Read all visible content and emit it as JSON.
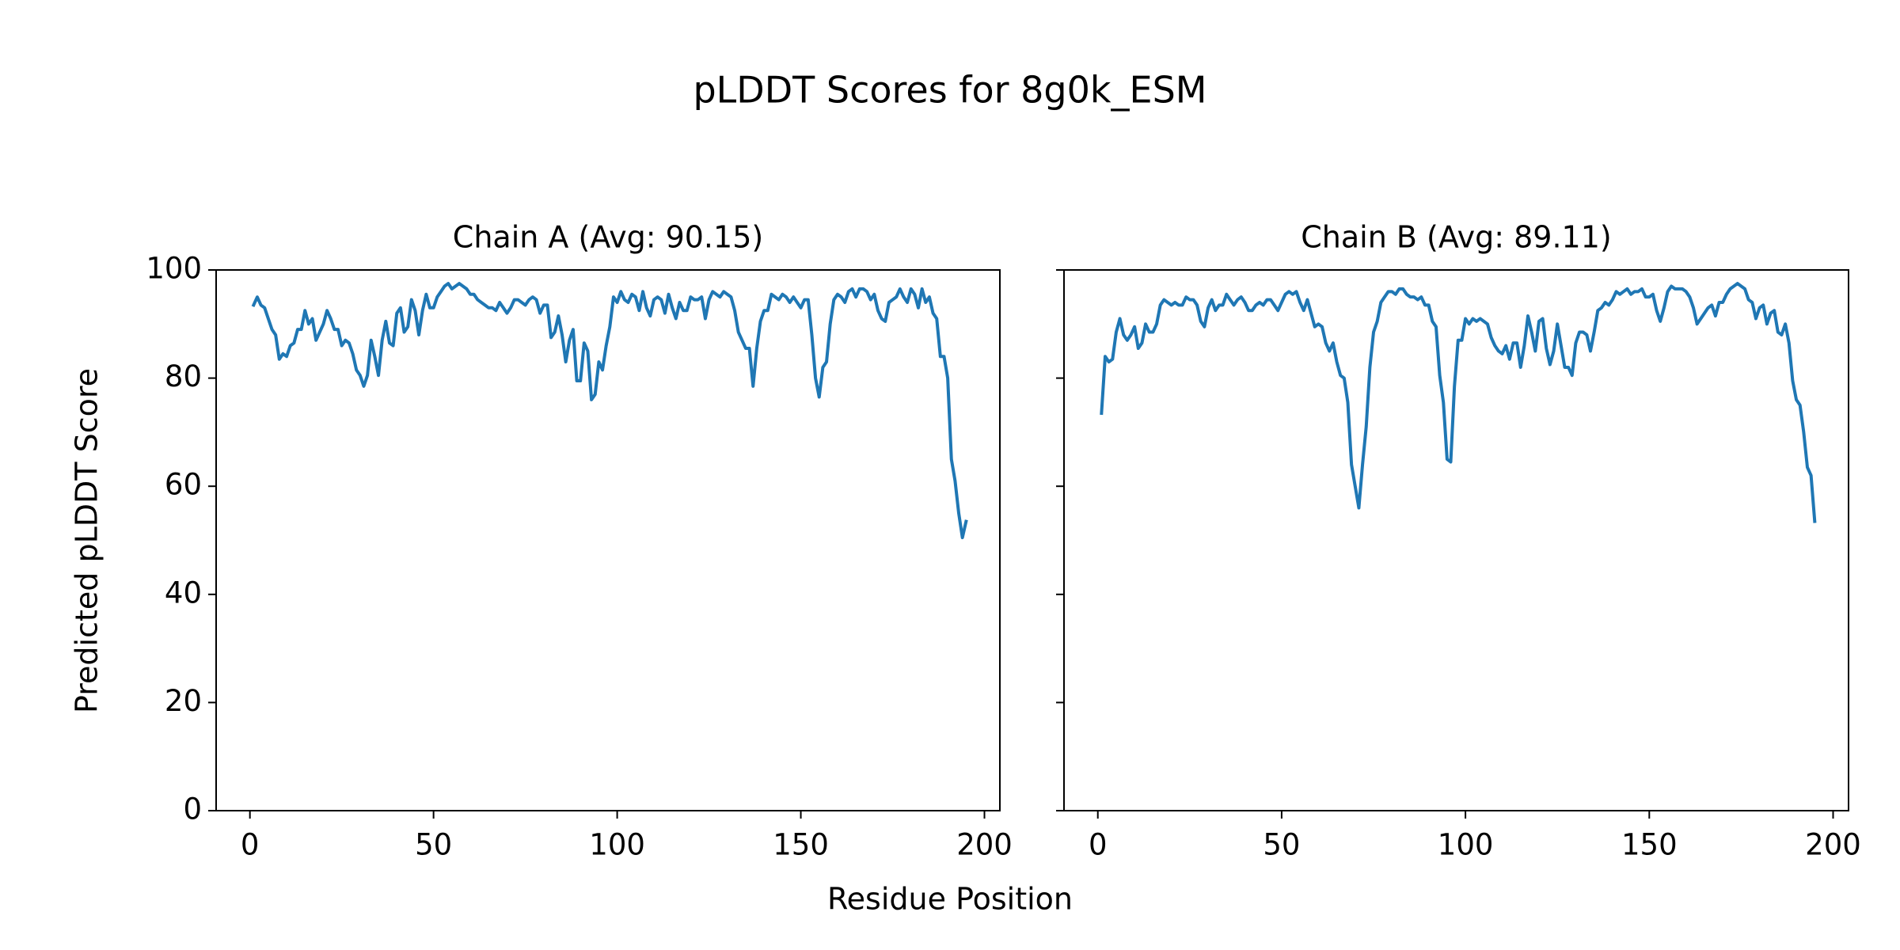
{
  "title": "pLDDT Scores for 8g0k_ESM",
  "xlabel": "Residue Position",
  "ylabel": "Predicted pLDDT Score",
  "chart_data": [
    {
      "type": "line",
      "title": "Chain A (Avg: 90.15)",
      "color": "#1f77b4",
      "xlim": [
        -9.2,
        204.2
      ],
      "xticks": [
        0,
        50,
        100,
        150,
        200
      ],
      "ylim": [
        0,
        100
      ],
      "yticks": [
        0,
        20,
        40,
        60,
        80,
        100
      ],
      "x": [
        1,
        2,
        3,
        4,
        5,
        6,
        7,
        8,
        9,
        10,
        11,
        12,
        13,
        14,
        15,
        16,
        17,
        18,
        19,
        20,
        21,
        22,
        23,
        24,
        25,
        26,
        27,
        28,
        29,
        30,
        31,
        32,
        33,
        34,
        35,
        36,
        37,
        38,
        39,
        40,
        41,
        42,
        43,
        44,
        45,
        46,
        47,
        48,
        49,
        50,
        51,
        52,
        53,
        54,
        55,
        56,
        57,
        58,
        59,
        60,
        61,
        62,
        63,
        64,
        65,
        66,
        67,
        68,
        69,
        70,
        71,
        72,
        73,
        74,
        75,
        76,
        77,
        78,
        79,
        80,
        81,
        82,
        83,
        84,
        85,
        86,
        87,
        88,
        89,
        90,
        91,
        92,
        93,
        94,
        95,
        96,
        97,
        98,
        99,
        100,
        101,
        102,
        103,
        104,
        105,
        106,
        107,
        108,
        109,
        110,
        111,
        112,
        113,
        114,
        115,
        116,
        117,
        118,
        119,
        120,
        121,
        122,
        123,
        124,
        125,
        126,
        127,
        128,
        129,
        130,
        131,
        132,
        133,
        134,
        135,
        136,
        137,
        138,
        139,
        140,
        141,
        142,
        143,
        144,
        145,
        146,
        147,
        148,
        149,
        150,
        151,
        152,
        153,
        154,
        155,
        156,
        157,
        158,
        159,
        160,
        161,
        162,
        163,
        164,
        165,
        166,
        167,
        168,
        169,
        170,
        171,
        172,
        173,
        174,
        175,
        176,
        177,
        178,
        179,
        180,
        181,
        182,
        183,
        184,
        185,
        186,
        187,
        188,
        189,
        190,
        191,
        192,
        193,
        194,
        195
      ],
      "values": [
        93.5,
        95,
        93.5,
        93,
        91,
        89,
        88,
        83.5,
        84.5,
        84,
        86,
        86.5,
        89,
        89,
        92.5,
        90,
        91,
        87,
        88.5,
        90,
        92.5,
        91,
        89,
        89,
        86,
        87,
        86.5,
        84.5,
        81.5,
        80.5,
        78.5,
        80.5,
        87,
        84,
        80.5,
        87,
        90.5,
        86.5,
        86,
        92,
        93,
        88.5,
        89.5,
        94.5,
        92.5,
        88,
        92.5,
        95.5,
        93,
        93,
        95,
        96,
        97,
        97.5,
        96.5,
        97,
        97.5,
        97,
        96.5,
        95.5,
        95.5,
        94.5,
        94,
        93.5,
        93,
        93,
        92.5,
        94,
        93,
        92,
        93,
        94.5,
        94.5,
        94,
        93.5,
        94.5,
        95,
        94.5,
        92,
        93.5,
        93.5,
        87.5,
        88.5,
        91.5,
        88,
        83,
        87,
        89,
        79.5,
        79.5,
        86.5,
        85,
        76,
        77,
        83,
        81.5,
        86,
        89.5,
        95,
        94,
        96,
        94.5,
        94,
        95.5,
        95,
        92.5,
        96,
        93,
        91.5,
        94.5,
        95,
        94.5,
        92,
        95.5,
        93,
        91,
        94,
        92.5,
        92.5,
        95,
        94.5,
        94.5,
        95,
        91,
        94.5,
        96,
        95.5,
        95,
        96,
        95.5,
        95,
        92.5,
        88.5,
        87,
        85.5,
        85.5,
        78.5,
        85.5,
        90.5,
        92.5,
        92.5,
        95.5,
        95,
        94.5,
        95.5,
        95,
        94,
        95,
        94,
        93,
        94.5,
        94.5,
        88,
        80,
        76.5,
        82,
        83,
        90,
        94.5,
        95.5,
        95,
        94,
        96,
        96.5,
        95,
        96.5,
        96.5,
        96,
        94.5,
        95.5,
        92.5,
        91,
        90.5,
        94,
        94.5,
        95,
        96.5,
        95,
        94,
        96.5,
        95.5,
        93,
        96.5,
        94,
        95,
        92,
        91,
        84,
        84,
        80,
        65,
        61,
        55,
        50.5,
        53.5
      ]
    },
    {
      "type": "line",
      "title": "Chain B (Avg: 89.11)",
      "color": "#1f77b4",
      "xlim": [
        -9.2,
        204.2
      ],
      "xticks": [
        0,
        50,
        100,
        150,
        200
      ],
      "ylim": [
        0,
        100
      ],
      "yticks": [
        0,
        20,
        40,
        60,
        80,
        100
      ],
      "x": [
        1,
        2,
        3,
        4,
        5,
        6,
        7,
        8,
        9,
        10,
        11,
        12,
        13,
        14,
        15,
        16,
        17,
        18,
        19,
        20,
        21,
        22,
        23,
        24,
        25,
        26,
        27,
        28,
        29,
        30,
        31,
        32,
        33,
        34,
        35,
        36,
        37,
        38,
        39,
        40,
        41,
        42,
        43,
        44,
        45,
        46,
        47,
        48,
        49,
        50,
        51,
        52,
        53,
        54,
        55,
        56,
        57,
        58,
        59,
        60,
        61,
        62,
        63,
        64,
        65,
        66,
        67,
        68,
        69,
        70,
        71,
        72,
        73,
        74,
        75,
        76,
        77,
        78,
        79,
        80,
        81,
        82,
        83,
        84,
        85,
        86,
        87,
        88,
        89,
        90,
        91,
        92,
        93,
        94,
        95,
        96,
        97,
        98,
        99,
        100,
        101,
        102,
        103,
        104,
        105,
        106,
        107,
        108,
        109,
        110,
        111,
        112,
        113,
        114,
        115,
        116,
        117,
        118,
        119,
        120,
        121,
        122,
        123,
        124,
        125,
        126,
        127,
        128,
        129,
        130,
        131,
        132,
        133,
        134,
        135,
        136,
        137,
        138,
        139,
        140,
        141,
        142,
        143,
        144,
        145,
        146,
        147,
        148,
        149,
        150,
        151,
        152,
        153,
        154,
        155,
        156,
        157,
        158,
        159,
        160,
        161,
        162,
        163,
        164,
        165,
        166,
        167,
        168,
        169,
        170,
        171,
        172,
        173,
        174,
        175,
        176,
        177,
        178,
        179,
        180,
        181,
        182,
        183,
        184,
        185,
        186,
        187,
        188,
        189,
        190,
        191,
        192,
        193,
        194,
        195
      ],
      "values": [
        73.5,
        84,
        83,
        83.5,
        88.5,
        91,
        88,
        87,
        88,
        89.5,
        85.5,
        86.5,
        90,
        88.5,
        88.5,
        90,
        93.5,
        94.5,
        94,
        93.5,
        94,
        93.5,
        93.5,
        95,
        94.5,
        94.5,
        93.5,
        90.5,
        89.5,
        93,
        94.5,
        92.5,
        93.5,
        93.5,
        95.5,
        94.5,
        93.5,
        94.5,
        95,
        94,
        92.5,
        92.5,
        93.5,
        94,
        93.5,
        94.5,
        94.5,
        93.5,
        92.5,
        94,
        95.5,
        96,
        95.5,
        96,
        94,
        92.5,
        94.5,
        92,
        89.5,
        90,
        89.5,
        86.5,
        85,
        86.5,
        83,
        80.5,
        80,
        75.5,
        64,
        60,
        56,
        64,
        71,
        82,
        88.5,
        90.5,
        94,
        95,
        96,
        96,
        95.5,
        96.5,
        96.5,
        95.5,
        95,
        95,
        94.5,
        95,
        93.5,
        93.5,
        90.5,
        89.5,
        80.5,
        75.5,
        65,
        64.5,
        78.5,
        87,
        87,
        91,
        90,
        91,
        90.5,
        91,
        90.5,
        90,
        87.5,
        86,
        85,
        84.5,
        86,
        83.5,
        86.5,
        86.5,
        82,
        86,
        91.5,
        88.5,
        85,
        90.5,
        91,
        85.5,
        82.5,
        85,
        90,
        86,
        82,
        82,
        80.5,
        86.5,
        88.5,
        88.5,
        88,
        85,
        88.5,
        92.5,
        93,
        94,
        93.5,
        94.5,
        96,
        95.5,
        96,
        96.5,
        95.5,
        96,
        96,
        96.5,
        95,
        95,
        95.5,
        92.5,
        90.5,
        93,
        96,
        97,
        96.5,
        96.5,
        96.5,
        96,
        95,
        93,
        90,
        91,
        92,
        93,
        93.5,
        91.5,
        94,
        94,
        95.5,
        96.5,
        97,
        97.5,
        97,
        96.5,
        94.5,
        94,
        91,
        93,
        93.5,
        90,
        92,
        92.5,
        88.5,
        88,
        90,
        86.5,
        79.5,
        76,
        75,
        70,
        63.5,
        62,
        53.5
      ]
    }
  ]
}
